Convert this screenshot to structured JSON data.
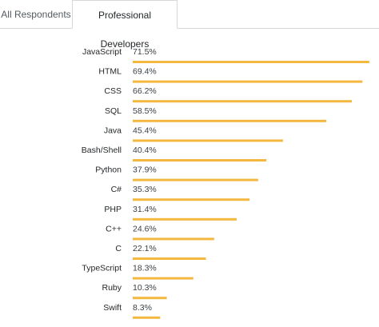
{
  "tabs": [
    {
      "label": "All Respondents",
      "active": false
    },
    {
      "label": "Professional Developers",
      "active": true
    }
  ],
  "chart_data": {
    "type": "bar",
    "orientation": "horizontal",
    "bar_color": "#f4b73f",
    "value_suffix": "%",
    "xlim": [
      0,
      72
    ],
    "categories": [
      "JavaScript",
      "HTML",
      "CSS",
      "SQL",
      "Java",
      "Bash/Shell",
      "Python",
      "C#",
      "PHP",
      "C++",
      "C",
      "TypeScript",
      "Ruby",
      "Swift"
    ],
    "values": [
      71.5,
      69.4,
      66.2,
      58.5,
      45.4,
      40.4,
      37.9,
      35.3,
      31.4,
      24.6,
      22.1,
      18.3,
      10.3,
      8.3
    ],
    "labels": [
      "71.5%",
      "69.4%",
      "66.2%",
      "58.5%",
      "45.4%",
      "40.4%",
      "37.9%",
      "35.3%",
      "31.4%",
      "24.6%",
      "22.1%",
      "18.3%",
      "10.3%",
      "8.3%"
    ]
  }
}
